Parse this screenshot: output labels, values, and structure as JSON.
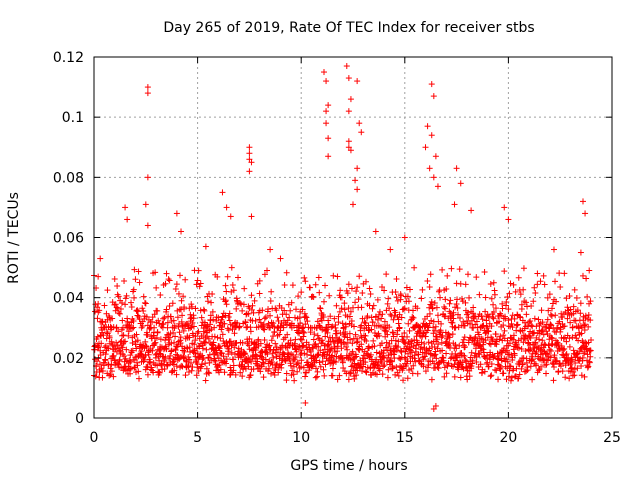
{
  "chart_data": {
    "type": "scatter",
    "title": "Day 265 of 2019, Rate Of TEC Index for receiver stbs",
    "xlabel": "GPS time / hours",
    "ylabel": "ROTI / TECUs",
    "xlim": [
      0,
      25
    ],
    "ylim": [
      0,
      0.12
    ],
    "xticks": [
      "0",
      "5",
      "10",
      "15",
      "20",
      "25"
    ],
    "yticks": [
      "0",
      "0.02",
      "0.04",
      "0.06",
      "0.08",
      "0.1",
      "0.12"
    ],
    "grid": true,
    "marker": "plus",
    "color": "#ff0000",
    "density_note": "dense band mostly between 0.008 and 0.045 across 0–24 h; sparse spikes listed in points",
    "points": [
      [
        2.6,
        0.11
      ],
      [
        2.6,
        0.108
      ],
      [
        2.6,
        0.08
      ],
      [
        2.5,
        0.071
      ],
      [
        2.6,
        0.064
      ],
      [
        7.5,
        0.09
      ],
      [
        7.5,
        0.088
      ],
      [
        7.5,
        0.086
      ],
      [
        7.6,
        0.085
      ],
      [
        7.5,
        0.082
      ],
      [
        7.6,
        0.067
      ],
      [
        11.1,
        0.115
      ],
      [
        11.2,
        0.112
      ],
      [
        11.3,
        0.104
      ],
      [
        11.2,
        0.102
      ],
      [
        11.2,
        0.098
      ],
      [
        11.3,
        0.093
      ],
      [
        11.3,
        0.087
      ],
      [
        12.2,
        0.117
      ],
      [
        12.3,
        0.113
      ],
      [
        12.4,
        0.106
      ],
      [
        12.3,
        0.102
      ],
      [
        12.3,
        0.092
      ],
      [
        12.3,
        0.09
      ],
      [
        12.4,
        0.089
      ],
      [
        12.7,
        0.112
      ],
      [
        12.8,
        0.098
      ],
      [
        12.9,
        0.095
      ],
      [
        12.7,
        0.083
      ],
      [
        12.6,
        0.079
      ],
      [
        12.7,
        0.076
      ],
      [
        12.5,
        0.071
      ],
      [
        16.3,
        0.111
      ],
      [
        16.4,
        0.107
      ],
      [
        16.1,
        0.097
      ],
      [
        16.3,
        0.094
      ],
      [
        16.0,
        0.09
      ],
      [
        16.5,
        0.087
      ],
      [
        16.2,
        0.083
      ],
      [
        16.4,
        0.08
      ],
      [
        16.6,
        0.077
      ],
      [
        17.5,
        0.083
      ],
      [
        17.7,
        0.078
      ],
      [
        17.4,
        0.071
      ],
      [
        18.2,
        0.069
      ],
      [
        1.5,
        0.07
      ],
      [
        1.6,
        0.066
      ],
      [
        4.0,
        0.068
      ],
      [
        4.2,
        0.062
      ],
      [
        6.2,
        0.075
      ],
      [
        6.4,
        0.07
      ],
      [
        6.6,
        0.067
      ],
      [
        8.5,
        0.056
      ],
      [
        9.0,
        0.053
      ],
      [
        13.6,
        0.062
      ],
      [
        14.3,
        0.056
      ],
      [
        15.0,
        0.06
      ],
      [
        19.8,
        0.07
      ],
      [
        20.0,
        0.066
      ],
      [
        22.2,
        0.056
      ],
      [
        23.6,
        0.072
      ],
      [
        23.7,
        0.068
      ],
      [
        23.5,
        0.055
      ],
      [
        0.3,
        0.053
      ],
      [
        0.2,
        0.047
      ],
      [
        16.4,
        0.003
      ],
      [
        16.5,
        0.004
      ],
      [
        10.2,
        0.005
      ],
      [
        3.5,
        0.048
      ],
      [
        5.4,
        0.057
      ]
    ]
  }
}
